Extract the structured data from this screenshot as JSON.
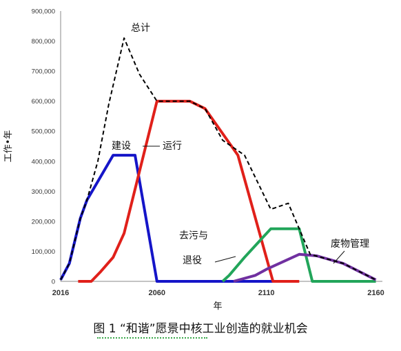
{
  "chart_data": {
    "type": "line",
    "title": "",
    "xlabel": "年",
    "ylabel": "工作•年",
    "xlim": [
      2016,
      2163
    ],
    "ylim": [
      0,
      900000
    ],
    "yticks": [
      "0",
      "100,000",
      "200,000",
      "300,000",
      "400,000",
      "500,000",
      "600,000",
      "700,000",
      "800,000",
      "900,000"
    ],
    "xticks": [
      "2016",
      "2060",
      "2110",
      "2160"
    ],
    "grid": false,
    "series": [
      {
        "name": "总计",
        "color": "#000000",
        "dashed": true,
        "points": [
          [
            2016,
            5000
          ],
          [
            2020,
            60000
          ],
          [
            2025,
            210000
          ],
          [
            2028,
            270000
          ],
          [
            2033,
            400000
          ],
          [
            2038,
            590000
          ],
          [
            2045,
            810000
          ],
          [
            2052,
            690000
          ],
          [
            2060,
            600000
          ],
          [
            2075,
            600000
          ],
          [
            2082,
            575000
          ],
          [
            2090,
            470000
          ],
          [
            2100,
            420000
          ],
          [
            2112,
            240000
          ],
          [
            2120,
            260000
          ],
          [
            2130,
            90000
          ],
          [
            2145,
            60000
          ],
          [
            2160,
            5000
          ]
        ]
      },
      {
        "name": "建设",
        "color": "#1515c8",
        "dashed": false,
        "points": [
          [
            2016,
            5000
          ],
          [
            2020,
            60000
          ],
          [
            2025,
            210000
          ],
          [
            2028,
            270000
          ],
          [
            2040,
            420000
          ],
          [
            2050,
            420000
          ],
          [
            2060,
            0
          ],
          [
            2113,
            0
          ]
        ]
      },
      {
        "name": "运行",
        "color": "#e0201a",
        "dashed": false,
        "points": [
          [
            2024,
            0
          ],
          [
            2030,
            0
          ],
          [
            2034,
            30000
          ],
          [
            2040,
            80000
          ],
          [
            2045,
            160000
          ],
          [
            2060,
            600000
          ],
          [
            2075,
            600000
          ],
          [
            2082,
            575000
          ],
          [
            2097,
            420000
          ],
          [
            2113,
            0
          ],
          [
            2125,
            0
          ]
        ]
      },
      {
        "name": "去污与退役",
        "color": "#22a55a",
        "dashed": false,
        "points": [
          [
            2090,
            0
          ],
          [
            2093,
            20000
          ],
          [
            2100,
            80000
          ],
          [
            2112,
            175000
          ],
          [
            2125,
            175000
          ],
          [
            2131,
            0
          ],
          [
            2160,
            0
          ]
        ]
      },
      {
        "name": "废物管理",
        "color": "#7030a0",
        "dashed": false,
        "points": [
          [
            2095,
            0
          ],
          [
            2105,
            20000
          ],
          [
            2110,
            40000
          ],
          [
            2125,
            90000
          ],
          [
            2133,
            85000
          ],
          [
            2145,
            60000
          ],
          [
            2160,
            5000
          ]
        ]
      }
    ],
    "annotations": [
      {
        "text": "总计"
      },
      {
        "text": "建设"
      },
      {
        "text": "运行"
      },
      {
        "text": "去污与"
      },
      {
        "text": "退役"
      },
      {
        "text": "废物管理"
      }
    ]
  },
  "caption": "图 1 “和谐”愿景中核工业创造的就业机会"
}
